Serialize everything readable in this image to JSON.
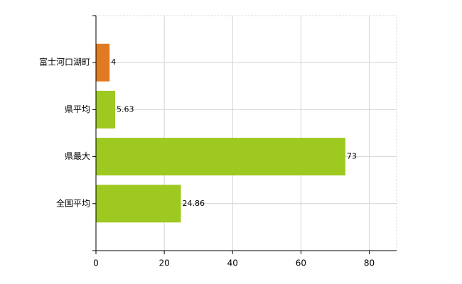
{
  "chart_data": {
    "type": "barh",
    "categories": [
      "富士河口湖町",
      "県平均",
      "県最大",
      "全国平均"
    ],
    "values": [
      4,
      5.63,
      73,
      24.86
    ],
    "colors": [
      "#e07b22",
      "#9ec920",
      "#9ec920",
      "#9ec920"
    ],
    "xlim": [
      0,
      88
    ],
    "xticks": [
      0,
      20,
      40,
      60,
      80
    ],
    "grid": true
  }
}
